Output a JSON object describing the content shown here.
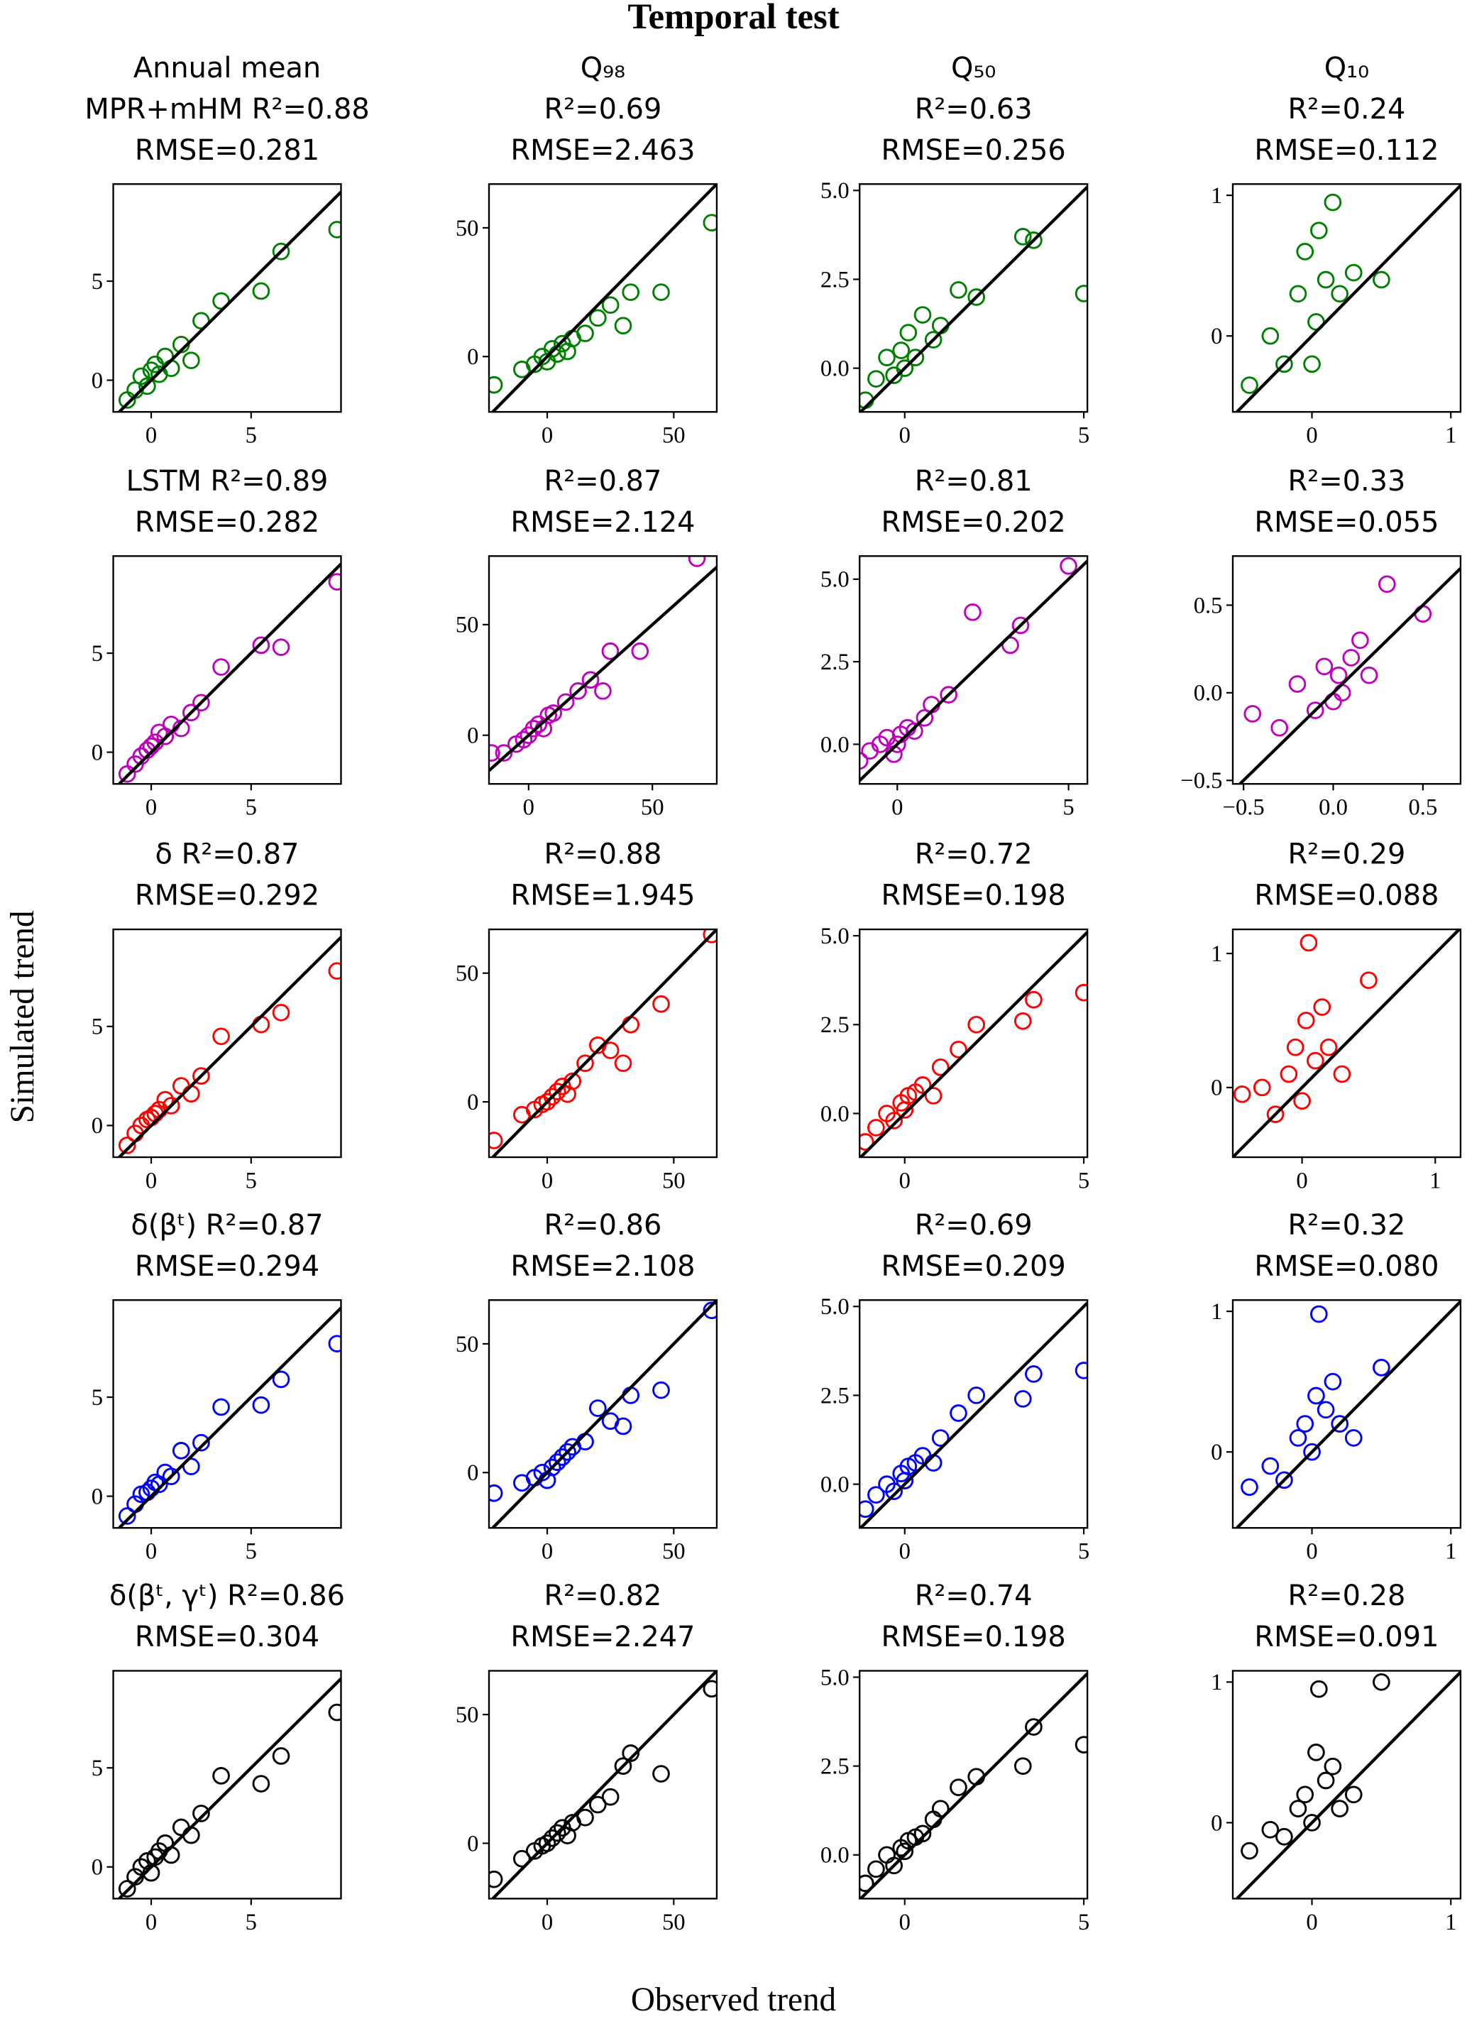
{
  "figure": {
    "title": "Temporal test",
    "xlabel": "Observed trend",
    "ylabel": "Simulated trend"
  },
  "chart_data": [
    {
      "type": "scatter",
      "title": [
        "Annual mean",
        "MPR+mHM R²=0.88",
        "RMSE=0.281"
      ],
      "color": "#008000",
      "xlim": [
        -1.9,
        9.5
      ],
      "ylim": [
        -1.6,
        9.9
      ],
      "xticks": [
        0,
        5
      ],
      "yticks": [
        0,
        5
      ],
      "x": [
        -1.2,
        -0.8,
        -0.5,
        -0.2,
        0,
        0.2,
        0.4,
        0.7,
        1.0,
        1.5,
        2.0,
        2.5,
        3.5,
        5.5,
        6.5,
        9.3
      ],
      "y": [
        -1.0,
        -0.5,
        0.2,
        -0.3,
        0.5,
        0.8,
        0.3,
        1.2,
        0.6,
        1.8,
        1.0,
        3.0,
        4.0,
        4.5,
        6.5,
        7.6
      ]
    },
    {
      "type": "scatter",
      "title": [
        "Q₉₈",
        "R²=0.69",
        "RMSE=2.463"
      ],
      "color": "#008000",
      "xlim": [
        -23,
        67
      ],
      "ylim": [
        -21.5,
        67
      ],
      "xticks": [
        0,
        50
      ],
      "yticks": [
        0,
        50
      ],
      "x": [
        -21,
        -10,
        -5,
        -2,
        0,
        2,
        4,
        6,
        8,
        10,
        15,
        20,
        25,
        30,
        33,
        45,
        65
      ],
      "y": [
        -11,
        -5,
        -3,
        0,
        -2,
        3,
        1,
        5,
        2,
        7,
        9,
        15,
        20,
        12,
        25,
        25,
        52
      ]
    },
    {
      "type": "scatter",
      "title": [
        "Q₅₀",
        "R²=0.63",
        "RMSE=0.256"
      ],
      "color": "#008000",
      "xlim": [
        -1.26,
        5.1
      ],
      "ylim": [
        -1.23,
        5.18
      ],
      "xticks": [
        0,
        5
      ],
      "yticks": [
        {
          "value": 0,
          "label": "0.0"
        },
        2.5,
        {
          "value": 5,
          "label": "5.0"
        }
      ],
      "x": [
        -1.1,
        -0.8,
        -0.5,
        -0.3,
        -0.1,
        0,
        0.1,
        0.3,
        0.5,
        0.8,
        1.0,
        1.5,
        2.0,
        3.3,
        3.6,
        5.0
      ],
      "y": [
        -0.9,
        -0.3,
        0.3,
        -0.2,
        0.5,
        0.0,
        1.0,
        0.3,
        1.5,
        0.8,
        1.2,
        2.2,
        2.0,
        3.7,
        3.6,
        2.1
      ]
    },
    {
      "type": "scatter",
      "title": [
        "Q₁₀",
        "R²=0.24",
        "RMSE=0.112"
      ],
      "color": "#008000",
      "xlim": [
        -0.57,
        1.07
      ],
      "ylim": [
        -0.54,
        1.08
      ],
      "xticks": [
        0,
        1
      ],
      "yticks": [
        0,
        1
      ],
      "x": [
        -0.45,
        -0.3,
        -0.2,
        -0.1,
        -0.05,
        0,
        0.03,
        0.05,
        0.1,
        0.15,
        0.2,
        0.3,
        0.5
      ],
      "y": [
        -0.35,
        0.0,
        -0.2,
        0.3,
        0.6,
        -0.2,
        0.1,
        0.75,
        0.4,
        0.95,
        0.3,
        0.45,
        0.4
      ]
    },
    {
      "type": "scatter",
      "title": [
        "LSTM R²=0.89",
        "RMSE=0.282"
      ],
      "color": "#bf00bf",
      "xlim": [
        -1.9,
        9.5
      ],
      "ylim": [
        -1.6,
        9.9
      ],
      "xticks": [
        0,
        5
      ],
      "yticks": [
        0,
        5
      ],
      "x": [
        -1.2,
        -0.8,
        -0.5,
        -0.2,
        0,
        0.2,
        0.4,
        0.7,
        1.0,
        1.5,
        2.0,
        2.5,
        3.5,
        5.5,
        6.5,
        9.3
      ],
      "y": [
        -1.1,
        -0.6,
        -0.2,
        0.1,
        0.3,
        0.5,
        1.0,
        0.8,
        1.4,
        1.2,
        2.0,
        2.5,
        4.3,
        5.4,
        5.3,
        8.6
      ]
    },
    {
      "type": "scatter",
      "title": [
        "R²=0.87",
        "RMSE=2.124"
      ],
      "color": "#bf00bf",
      "xlim": [
        -16,
        76
      ],
      "ylim": [
        -22,
        81
      ],
      "xticks": [
        0,
        50
      ],
      "yticks": [
        0,
        50
      ],
      "x": [
        -15,
        -10,
        -5,
        -2,
        0,
        2,
        4,
        6,
        8,
        10,
        15,
        20,
        25,
        30,
        33,
        45,
        68
      ],
      "y": [
        -8,
        -8,
        -4,
        -2,
        0,
        3,
        5,
        3,
        9,
        10,
        15,
        20,
        25,
        20,
        38,
        38,
        80
      ]
    },
    {
      "type": "scatter",
      "title": [
        "R²=0.81",
        "RMSE=0.202"
      ],
      "color": "#bf00bf",
      "xlim": [
        -1.1,
        5.55
      ],
      "ylim": [
        -1.2,
        5.7
      ],
      "xticks": [
        0,
        5
      ],
      "yticks": [
        {
          "value": 0,
          "label": "0.0"
        },
        2.5,
        {
          "value": 5,
          "label": "5.0"
        }
      ],
      "x": [
        -1.1,
        -0.8,
        -0.5,
        -0.3,
        -0.1,
        0,
        0.1,
        0.3,
        0.5,
        0.8,
        1.0,
        1.5,
        2.2,
        3.3,
        3.6,
        5.0
      ],
      "y": [
        -0.5,
        -0.2,
        0.0,
        0.2,
        -0.3,
        0.0,
        0.3,
        0.5,
        0.4,
        0.8,
        1.2,
        1.5,
        4.0,
        3.0,
        3.6,
        5.4
      ]
    },
    {
      "type": "scatter",
      "title": [
        "R²=0.33",
        "RMSE=0.055"
      ],
      "color": "#bf00bf",
      "xlim": [
        -0.56,
        0.71
      ],
      "ylim": [
        -0.52,
        0.78
      ],
      "xticks": [
        {
          "value": -0.5,
          "label": "−0.5"
        },
        {
          "value": 0,
          "label": "0.0"
        },
        0.5
      ],
      "yticks": [
        {
          "value": -0.5,
          "label": "−0.5"
        },
        {
          "value": 0,
          "label": "0.0"
        },
        0.5
      ],
      "x": [
        -0.45,
        -0.3,
        -0.2,
        -0.1,
        -0.05,
        0,
        0.03,
        0.05,
        0.1,
        0.15,
        0.2,
        0.3,
        0.5
      ],
      "y": [
        -0.12,
        -0.2,
        0.05,
        -0.1,
        0.15,
        -0.05,
        0.1,
        0.0,
        0.2,
        0.3,
        0.1,
        0.62,
        0.45
      ]
    },
    {
      "type": "scatter",
      "title": [
        "δ R²=0.87",
        "RMSE=0.292"
      ],
      "color": "#ff0000",
      "xlim": [
        -1.9,
        9.5
      ],
      "ylim": [
        -1.6,
        9.9
      ],
      "xticks": [
        0,
        5
      ],
      "yticks": [
        0,
        5
      ],
      "x": [
        -1.2,
        -0.8,
        -0.5,
        -0.2,
        0,
        0.2,
        0.4,
        0.7,
        1.0,
        1.5,
        2.0,
        2.5,
        3.5,
        5.5,
        6.5,
        9.3
      ],
      "y": [
        -1.0,
        -0.4,
        0.0,
        0.3,
        0.4,
        0.6,
        0.8,
        1.3,
        1.0,
        2.0,
        1.6,
        2.5,
        4.5,
        5.1,
        5.7,
        7.8
      ]
    },
    {
      "type": "scatter",
      "title": [
        "R²=0.88",
        "RMSE=1.945"
      ],
      "color": "#ff0000",
      "xlim": [
        -23,
        67
      ],
      "ylim": [
        -21.5,
        67
      ],
      "xticks": [
        0,
        50
      ],
      "yticks": [
        0,
        50
      ],
      "x": [
        -21,
        -10,
        -5,
        -2,
        0,
        2,
        4,
        6,
        8,
        10,
        15,
        20,
        25,
        30,
        33,
        45,
        65
      ],
      "y": [
        -15,
        -5,
        -3,
        -1,
        0,
        2,
        4,
        6,
        3,
        8,
        15,
        22,
        20,
        15,
        30,
        38,
        65
      ]
    },
    {
      "type": "scatter",
      "title": [
        "R²=0.72",
        "RMSE=0.198"
      ],
      "color": "#ff0000",
      "xlim": [
        -1.26,
        5.1
      ],
      "ylim": [
        -1.23,
        5.18
      ],
      "xticks": [
        0,
        5
      ],
      "yticks": [
        {
          "value": 0,
          "label": "0.0"
        },
        2.5,
        {
          "value": 5,
          "label": "5.0"
        }
      ],
      "x": [
        -1.1,
        -0.8,
        -0.5,
        -0.3,
        -0.1,
        0,
        0.1,
        0.3,
        0.5,
        0.8,
        1.0,
        1.5,
        2.0,
        3.3,
        3.6,
        5.0
      ],
      "y": [
        -0.8,
        -0.4,
        0.0,
        -0.2,
        0.3,
        0.1,
        0.5,
        0.6,
        0.8,
        0.5,
        1.3,
        1.8,
        2.5,
        2.6,
        3.2,
        3.4
      ]
    },
    {
      "type": "scatter",
      "title": [
        "R²=0.29",
        "RMSE=0.088"
      ],
      "color": "#ff0000",
      "xlim": [
        -0.52,
        1.19
      ],
      "ylim": [
        -0.52,
        1.18
      ],
      "xticks": [
        0,
        1
      ],
      "yticks": [
        0,
        1
      ],
      "x": [
        -0.45,
        -0.3,
        -0.2,
        -0.1,
        -0.05,
        0,
        0.03,
        0.05,
        0.1,
        0.15,
        0.2,
        0.3,
        0.5
      ],
      "y": [
        -0.05,
        0.0,
        -0.2,
        0.1,
        0.3,
        -0.1,
        0.5,
        1.08,
        0.2,
        0.6,
        0.3,
        0.1,
        0.8
      ]
    },
    {
      "type": "scatter",
      "title": [
        "δ(βᵗ) R²=0.87",
        "RMSE=0.294"
      ],
      "color": "#0000ff",
      "xlim": [
        -1.9,
        9.5
      ],
      "ylim": [
        -1.6,
        9.9
      ],
      "xticks": [
        0,
        5
      ],
      "yticks": [
        0,
        5
      ],
      "x": [
        -1.2,
        -0.8,
        -0.5,
        -0.2,
        0,
        0.2,
        0.4,
        0.7,
        1.0,
        1.5,
        2.0,
        2.5,
        3.5,
        5.5,
        6.5,
        9.3
      ],
      "y": [
        -1.0,
        -0.4,
        0.1,
        0.2,
        0.4,
        0.7,
        0.6,
        1.2,
        1.0,
        2.3,
        1.5,
        2.7,
        4.5,
        4.6,
        5.9,
        7.7
      ]
    },
    {
      "type": "scatter",
      "title": [
        "R²=0.86",
        "RMSE=2.108"
      ],
      "color": "#0000ff",
      "xlim": [
        -23,
        67
      ],
      "ylim": [
        -21.5,
        67
      ],
      "xticks": [
        0,
        50
      ],
      "yticks": [
        0,
        50
      ],
      "x": [
        -21,
        -10,
        -5,
        -2,
        0,
        2,
        4,
        6,
        8,
        10,
        15,
        20,
        25,
        30,
        33,
        45,
        65
      ],
      "y": [
        -8,
        -4,
        -2,
        0,
        -3,
        2,
        4,
        6,
        8,
        10,
        12,
        25,
        20,
        18,
        30,
        32,
        63
      ]
    },
    {
      "type": "scatter",
      "title": [
        "R²=0.69",
        "RMSE=0.209"
      ],
      "color": "#0000ff",
      "xlim": [
        -1.26,
        5.1
      ],
      "ylim": [
        -1.23,
        5.18
      ],
      "xticks": [
        0,
        5
      ],
      "yticks": [
        {
          "value": 0,
          "label": "0.0"
        },
        2.5,
        {
          "value": 5,
          "label": "5.0"
        }
      ],
      "x": [
        -1.1,
        -0.8,
        -0.5,
        -0.3,
        -0.1,
        0,
        0.1,
        0.3,
        0.5,
        0.8,
        1.0,
        1.5,
        2.0,
        3.3,
        3.6,
        5.0
      ],
      "y": [
        -0.7,
        -0.3,
        0.0,
        -0.2,
        0.3,
        0.1,
        0.5,
        0.6,
        0.8,
        0.6,
        1.3,
        2.0,
        2.5,
        2.4,
        3.1,
        3.2
      ]
    },
    {
      "type": "scatter",
      "title": [
        "R²=0.32",
        "RMSE=0.080"
      ],
      "color": "#0000ff",
      "xlim": [
        -0.57,
        1.07
      ],
      "ylim": [
        -0.54,
        1.08
      ],
      "xticks": [
        0,
        1
      ],
      "yticks": [
        0,
        1
      ],
      "x": [
        -0.45,
        -0.3,
        -0.2,
        -0.1,
        -0.05,
        0,
        0.03,
        0.05,
        0.1,
        0.15,
        0.2,
        0.3,
        0.5
      ],
      "y": [
        -0.25,
        -0.1,
        -0.2,
        0.1,
        0.2,
        0.0,
        0.4,
        0.98,
        0.3,
        0.5,
        0.2,
        0.1,
        0.6
      ]
    },
    {
      "type": "scatter",
      "title": [
        "δ(βᵗ, γᵗ) R²=0.86",
        "RMSE=0.304"
      ],
      "color": "#000000",
      "xlim": [
        -1.9,
        9.5
      ],
      "ylim": [
        -1.6,
        9.9
      ],
      "xticks": [
        0,
        5
      ],
      "yticks": [
        0,
        5
      ],
      "x": [
        -1.2,
        -0.8,
        -0.5,
        -0.2,
        0,
        0.2,
        0.4,
        0.7,
        1.0,
        1.5,
        2.0,
        2.5,
        3.5,
        5.5,
        6.5,
        9.3
      ],
      "y": [
        -1.1,
        -0.5,
        0.0,
        0.3,
        -0.3,
        0.5,
        0.8,
        1.2,
        0.6,
        2.0,
        1.6,
        2.7,
        4.6,
        4.2,
        5.6,
        7.8
      ]
    },
    {
      "type": "scatter",
      "title": [
        "R²=0.82",
        "RMSE=2.247"
      ],
      "color": "#000000",
      "xlim": [
        -23,
        67
      ],
      "ylim": [
        -21.5,
        67
      ],
      "xticks": [
        0,
        50
      ],
      "yticks": [
        0,
        50
      ],
      "x": [
        -21,
        -10,
        -5,
        -2,
        0,
        2,
        4,
        6,
        8,
        10,
        15,
        20,
        25,
        30,
        33,
        45,
        65
      ],
      "y": [
        -14,
        -6,
        -3,
        -1,
        0,
        2,
        4,
        6,
        3,
        8,
        10,
        15,
        18,
        30,
        35,
        27,
        60
      ]
    },
    {
      "type": "scatter",
      "title": [
        "R²=0.74",
        "RMSE=0.198"
      ],
      "color": "#000000",
      "xlim": [
        -1.26,
        5.1
      ],
      "ylim": [
        -1.23,
        5.18
      ],
      "xticks": [
        0,
        5
      ],
      "yticks": [
        {
          "value": 0,
          "label": "0.0"
        },
        2.5,
        {
          "value": 5,
          "label": "5.0"
        }
      ],
      "x": [
        -1.1,
        -0.8,
        -0.5,
        -0.3,
        -0.1,
        0,
        0.1,
        0.3,
        0.5,
        0.8,
        1.0,
        1.5,
        2.0,
        3.3,
        3.6,
        5.0
      ],
      "y": [
        -0.8,
        -0.4,
        0.0,
        -0.3,
        0.2,
        0.1,
        0.4,
        0.5,
        0.6,
        1.0,
        1.3,
        1.9,
        2.2,
        2.5,
        3.6,
        3.1
      ]
    },
    {
      "type": "scatter",
      "title": [
        "R²=0.28",
        "RMSE=0.091"
      ],
      "color": "#000000",
      "xlim": [
        -0.57,
        1.07
      ],
      "ylim": [
        -0.54,
        1.08
      ],
      "xticks": [
        0,
        1
      ],
      "yticks": [
        0,
        1
      ],
      "x": [
        -0.45,
        -0.3,
        -0.2,
        -0.1,
        -0.05,
        0,
        0.03,
        0.05,
        0.1,
        0.15,
        0.2,
        0.3,
        0.5
      ],
      "y": [
        -0.2,
        -0.05,
        -0.1,
        0.1,
        0.2,
        0.0,
        0.5,
        0.95,
        0.3,
        0.4,
        0.1,
        0.2,
        1.0
      ]
    }
  ]
}
